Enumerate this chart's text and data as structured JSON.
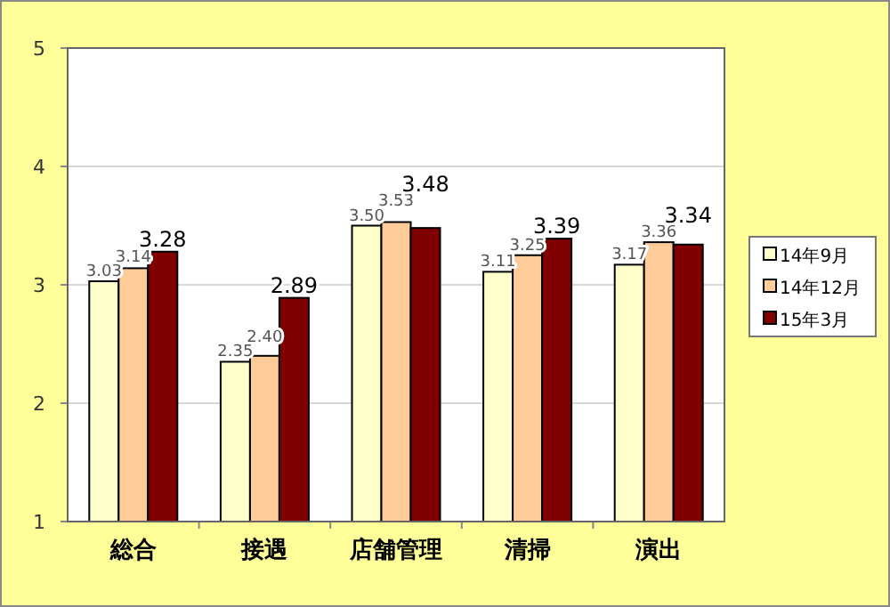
{
  "chart_data": {
    "type": "bar",
    "categories": [
      "総合",
      "接遇",
      "店舗管理",
      "清掃",
      "演出"
    ],
    "series": [
      {
        "name": "14年9月",
        "color": "#ffffcc",
        "values": [
          3.03,
          2.35,
          3.5,
          3.11,
          3.17
        ],
        "value_labels": [
          "3.03",
          "2.35",
          "3.50",
          "3.11",
          "3.17"
        ]
      },
      {
        "name": "14年12月",
        "color": "#ffcc99",
        "values": [
          3.14,
          2.4,
          3.53,
          3.25,
          3.36
        ],
        "value_labels": [
          "3.14",
          "2.40",
          "3.53",
          "3.25",
          "3.36"
        ]
      },
      {
        "name": "15年3月",
        "color": "#800000",
        "values": [
          3.28,
          2.89,
          3.48,
          3.39,
          3.34
        ],
        "value_labels": [
          "3.28",
          "2.89",
          "3.48",
          "3.39",
          "3.34"
        ]
      }
    ],
    "ylim": [
      1,
      5
    ],
    "yticks": [
      1,
      2,
      3,
      4,
      5
    ],
    "grid": "y",
    "legend": "right"
  }
}
